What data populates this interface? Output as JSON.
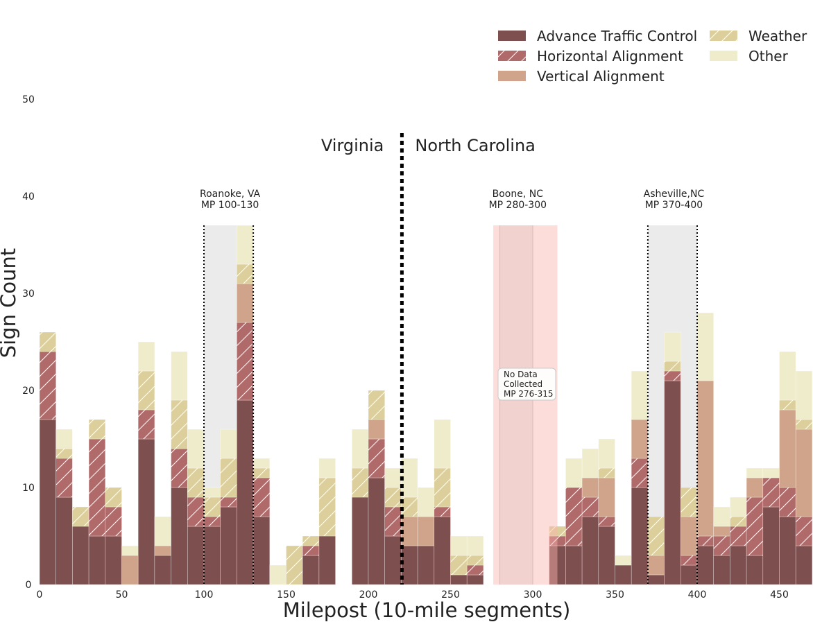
{
  "chart_data": {
    "type": "bar",
    "stacked": true,
    "xlabel": "Milepost (10-mile segments)",
    "ylabel": "Sign Count",
    "xlim": [
      0,
      470
    ],
    "ylim": [
      0,
      50
    ],
    "x_ticks": [
      0,
      50,
      100,
      150,
      200,
      250,
      300,
      350,
      400,
      450
    ],
    "y_ticks": [
      0,
      10,
      20,
      30,
      40,
      50
    ],
    "grid": false,
    "legend_position": "top-right",
    "bin_width": 10,
    "x": [
      0,
      10,
      20,
      30,
      40,
      50,
      60,
      70,
      80,
      90,
      100,
      110,
      120,
      130,
      140,
      150,
      160,
      170,
      180,
      190,
      200,
      210,
      220,
      230,
      240,
      250,
      260,
      270,
      280,
      290,
      300,
      310,
      320,
      330,
      340,
      350,
      360,
      370,
      380,
      390,
      400,
      410,
      420,
      430,
      440,
      450,
      460
    ],
    "series": [
      {
        "name": "Advance Traffic Control",
        "color": "#7e4f4f",
        "hatch": false,
        "values": [
          17,
          9,
          6,
          5,
          5,
          0,
          15,
          3,
          10,
          6,
          6,
          8,
          19,
          7,
          0,
          0,
          3,
          5,
          0,
          9,
          11,
          5,
          4,
          4,
          7,
          1,
          1,
          0,
          0,
          0,
          0,
          4,
          4,
          7,
          6,
          2,
          10,
          1,
          21,
          2,
          4,
          3,
          4,
          3,
          8,
          7,
          4
        ]
      },
      {
        "name": "Horizontal Alignment",
        "color": "#b06a6a",
        "hatch": true,
        "values": [
          7,
          4,
          0,
          10,
          3,
          0,
          3,
          0,
          4,
          3,
          1,
          1,
          8,
          4,
          0,
          0,
          1,
          0,
          0,
          0,
          4,
          3,
          0,
          0,
          1,
          0,
          1,
          0,
          0,
          0,
          0,
          1,
          6,
          2,
          1,
          0,
          3,
          0,
          1,
          1,
          1,
          2,
          2,
          6,
          3,
          3,
          3
        ]
      },
      {
        "name": "Vertical Alignment",
        "color": "#d0a48a",
        "hatch": false,
        "values": [
          0,
          0,
          0,
          0,
          0,
          3,
          0,
          1,
          0,
          0,
          0,
          0,
          4,
          0,
          0,
          0,
          0,
          0,
          0,
          0,
          2,
          0,
          3,
          3,
          0,
          0,
          0,
          0,
          0,
          0,
          0,
          0,
          0,
          2,
          4,
          0,
          4,
          2,
          0,
          4,
          16,
          1,
          0,
          2,
          0,
          8,
          9
        ]
      },
      {
        "name": "Weather",
        "color": "#dccf9c",
        "hatch": true,
        "values": [
          2,
          1,
          2,
          2,
          2,
          0,
          4,
          0,
          5,
          3,
          2,
          4,
          2,
          1,
          0,
          4,
          1,
          6,
          0,
          3,
          3,
          2,
          2,
          0,
          4,
          2,
          1,
          0,
          0,
          0,
          0,
          1,
          0,
          0,
          1,
          0,
          0,
          4,
          1,
          3,
          0,
          0,
          1,
          0,
          0,
          1,
          1
        ]
      },
      {
        "name": "Other",
        "color": "#efeccb",
        "hatch": false,
        "values": [
          0,
          2,
          0,
          0,
          0,
          1,
          3,
          3,
          5,
          4,
          1,
          3,
          4,
          1,
          2,
          0,
          0,
          2,
          0,
          4,
          0,
          2,
          4,
          3,
          5,
          2,
          2,
          0,
          0,
          0,
          0,
          0,
          3,
          3,
          3,
          1,
          5,
          0,
          3,
          0,
          7,
          2,
          2,
          1,
          1,
          5,
          5
        ]
      }
    ],
    "regions": [
      {
        "type": "shaded",
        "x0": 100,
        "x1": 130,
        "color": "#ebebeb",
        "dotted_edges": true,
        "line1": "Roanoke, VA",
        "line2": "MP 100-130"
      },
      {
        "type": "shaded",
        "x0": 280,
        "x1": 300,
        "color": "#ebebeb",
        "dotted_edges": false,
        "line1": "Boone, NC",
        "line2": "MP 280-300"
      },
      {
        "type": "shaded",
        "x0": 370,
        "x1": 400,
        "color": "#ebebeb",
        "dotted_edges": true,
        "line1": "Asheville,NC",
        "line2": "MP 370-400"
      },
      {
        "type": "no-data",
        "x0": 276,
        "x1": 315,
        "color": "#f9b3ac"
      }
    ],
    "region_top_y": 37,
    "no_data_note": {
      "line1": "No Data",
      "line2": "Collected",
      "line3": "MP 276-315"
    },
    "state_boundary": {
      "x": 220,
      "left_label": "Virginia",
      "right_label": "North Carolina"
    }
  }
}
